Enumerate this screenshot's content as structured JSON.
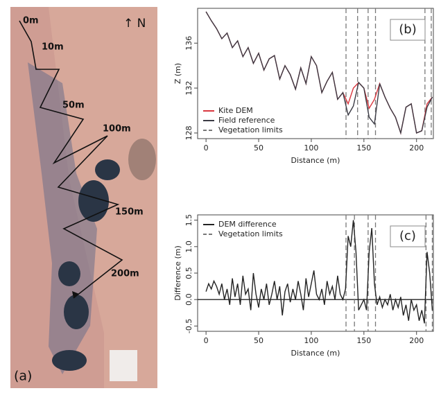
{
  "map_panel": {
    "north": "↑ N",
    "panel_label": "(a)",
    "distance_labels": [
      "0m",
      "10m",
      "50m",
      "100m",
      "150m",
      "200m"
    ]
  },
  "chart_data": [
    {
      "type": "line",
      "panel_label": "(b)",
      "x_label": "Distance (m)",
      "y_label": "Z (m)",
      "x": [
        0,
        5,
        10,
        15,
        20,
        25,
        30,
        35,
        40,
        45,
        50,
        55,
        60,
        65,
        70,
        75,
        80,
        85,
        90,
        95,
        100,
        105,
        110,
        115,
        120,
        125,
        130,
        135,
        140,
        145,
        150,
        155,
        160,
        165,
        170,
        175,
        180,
        185,
        190,
        195,
        200,
        205,
        210,
        215
      ],
      "series": [
        {
          "name": "Kite DEM",
          "color": "#d9363e",
          "values": [
            138.8,
            138.0,
            137.3,
            136.4,
            136.9,
            135.6,
            136.2,
            134.8,
            135.6,
            134.2,
            135.1,
            133.6,
            134.6,
            134.9,
            132.8,
            134.0,
            133.2,
            131.9,
            133.8,
            132.4,
            134.8,
            134.0,
            131.6,
            132.6,
            133.4,
            131.0,
            131.6,
            130.6,
            132.0,
            132.5,
            132.0,
            130.2,
            131.0,
            132.4,
            131.2,
            130.2,
            129.4,
            128.0,
            130.3,
            130.6,
            128.0,
            128.2,
            130.6,
            131.2
          ]
        },
        {
          "name": "Field reference",
          "color": "#3a3a44",
          "values": [
            138.8,
            138.0,
            137.3,
            136.4,
            136.9,
            135.6,
            136.2,
            134.8,
            135.6,
            134.2,
            135.1,
            133.6,
            134.6,
            134.9,
            132.8,
            134.0,
            133.2,
            131.9,
            133.8,
            132.4,
            134.8,
            134.0,
            131.6,
            132.6,
            133.4,
            131.0,
            131.6,
            129.6,
            130.4,
            132.5,
            132.0,
            129.4,
            128.8,
            132.4,
            131.2,
            130.2,
            129.4,
            128.0,
            130.3,
            130.6,
            128.0,
            128.2,
            130.3,
            131.2
          ]
        }
      ],
      "vlines": {
        "name": "Vegetation limits",
        "color": "#777777",
        "values": [
          133,
          144,
          154,
          161,
          208,
          214
        ]
      },
      "xlim": [
        -8,
        216
      ],
      "ylim": [
        127.5,
        139.1
      ],
      "xticks": [
        0,
        50,
        100,
        150,
        200
      ],
      "yticks": [
        128,
        132,
        136
      ],
      "legend": "lower left"
    },
    {
      "type": "line",
      "panel_label": "(c)",
      "x_label": "Distance (m)",
      "y_label": "Difference (m)",
      "x": [
        0,
        2.5,
        5,
        7.5,
        10,
        12.5,
        15,
        17.5,
        20,
        22.5,
        25,
        27.5,
        30,
        32.5,
        35,
        37.5,
        40,
        42.5,
        45,
        47.5,
        50,
        52.5,
        55,
        57.5,
        60,
        62.5,
        65,
        67.5,
        70,
        72.5,
        75,
        77.5,
        80,
        82.5,
        85,
        87.5,
        90,
        92.5,
        95,
        97.5,
        100,
        102.5,
        105,
        107.5,
        110,
        112.5,
        115,
        117.5,
        120,
        122.5,
        125,
        127.5,
        130,
        132.5,
        135,
        137.5,
        140,
        142.5,
        145,
        147.5,
        150,
        152.5,
        155,
        157.5,
        160,
        162.5,
        165,
        167.5,
        170,
        172.5,
        175,
        177.5,
        180,
        182.5,
        185,
        187.5,
        190,
        192.5,
        195,
        197.5,
        200,
        202.5,
        205,
        207.5,
        210,
        212.5,
        215
      ],
      "series": [
        {
          "name": "DEM difference",
          "color": "#222222",
          "values": [
            0.15,
            0.3,
            0.2,
            0.35,
            0.25,
            0.1,
            0.3,
            0.0,
            0.2,
            -0.1,
            0.4,
            0.05,
            0.3,
            -0.1,
            0.45,
            0.1,
            0.2,
            -0.2,
            0.5,
            0.1,
            -0.15,
            0.2,
            0.0,
            0.3,
            -0.1,
            0.1,
            0.35,
            0.0,
            0.25,
            -0.3,
            0.15,
            0.3,
            -0.05,
            0.2,
            0.0,
            0.35,
            0.1,
            -0.2,
            0.4,
            0.05,
            0.3,
            0.55,
            0.1,
            0.0,
            0.2,
            -0.1,
            0.35,
            0.1,
            0.25,
            0.0,
            0.45,
            0.1,
            0.0,
            0.2,
            1.2,
            1.0,
            1.5,
            0.9,
            -0.2,
            -0.1,
            0.0,
            -0.2,
            0.9,
            1.35,
            0.3,
            -0.1,
            0.05,
            -0.15,
            0.0,
            -0.1,
            0.1,
            -0.2,
            0.0,
            -0.15,
            0.05,
            -0.3,
            -0.1,
            -0.4,
            0.0,
            -0.2,
            -0.1,
            -0.4,
            -0.2,
            -0.45,
            0.9,
            0.5,
            -0.2
          ]
        }
      ],
      "vlines": {
        "name": "Vegetation limits",
        "color": "#777777",
        "values": [
          133,
          141,
          154,
          161,
          209,
          215
        ]
      },
      "hline": 0,
      "xlim": [
        -8,
        216
      ],
      "ylim": [
        -0.6,
        1.6
      ],
      "xticks": [
        0,
        50,
        100,
        150,
        200
      ],
      "yticks": [
        -0.5,
        {
          "value": 0,
          "label": "0.0"
        },
        0.5,
        {
          "value": 1,
          "label": "1.0"
        },
        1.5
      ],
      "legend": "upper left"
    }
  ]
}
